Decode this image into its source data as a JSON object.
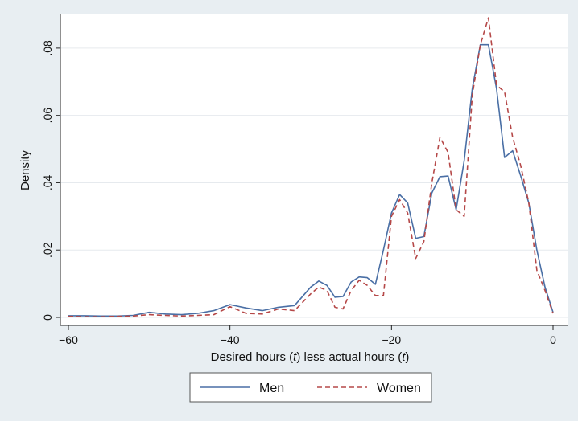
{
  "chart_data": {
    "type": "line",
    "xlabel": "Desired hours (t) less actual hours (t)",
    "ylabel": "Density",
    "xlim": [
      -60,
      0
    ],
    "ylim": [
      0,
      0.09
    ],
    "x_ticks": [
      -60,
      -40,
      -20,
      0
    ],
    "x_tick_labels": [
      "−60",
      "−40",
      "−20",
      "0"
    ],
    "y_ticks": [
      0,
      0.02,
      0.04,
      0.06,
      0.08
    ],
    "y_tick_labels": [
      "0",
      ".02",
      ".04",
      ".06",
      ".08"
    ],
    "grid": "horizontal",
    "legend": "bottom",
    "series": [
      {
        "name": "Men",
        "color": "#4a6fa5",
        "dash": "solid",
        "points": [
          [
            -60,
            0.0005
          ],
          [
            -58,
            0.0005
          ],
          [
            -56,
            0.0004
          ],
          [
            -54,
            0.0004
          ],
          [
            -52,
            0.0006
          ],
          [
            -50,
            0.0015
          ],
          [
            -48,
            0.001
          ],
          [
            -46,
            0.0008
          ],
          [
            -44,
            0.0012
          ],
          [
            -42,
            0.002
          ],
          [
            -40,
            0.0038
          ],
          [
            -38,
            0.0028
          ],
          [
            -36,
            0.002
          ],
          [
            -34,
            0.003
          ],
          [
            -32,
            0.0035
          ],
          [
            -30,
            0.009
          ],
          [
            -29,
            0.0108
          ],
          [
            -28,
            0.0095
          ],
          [
            -27,
            0.006
          ],
          [
            -26,
            0.0062
          ],
          [
            -25,
            0.0105
          ],
          [
            -24,
            0.012
          ],
          [
            -23,
            0.0118
          ],
          [
            -22,
            0.0098
          ],
          [
            -21,
            0.02
          ],
          [
            -20,
            0.031
          ],
          [
            -19,
            0.0365
          ],
          [
            -18,
            0.034
          ],
          [
            -17,
            0.0235
          ],
          [
            -16,
            0.024
          ],
          [
            -15,
            0.037
          ],
          [
            -14,
            0.0418
          ],
          [
            -13,
            0.042
          ],
          [
            -12,
            0.032
          ],
          [
            -11,
            0.0465
          ],
          [
            -10,
            0.068
          ],
          [
            -9,
            0.081
          ],
          [
            -8,
            0.081
          ],
          [
            -7,
            0.068
          ],
          [
            -6,
            0.0475
          ],
          [
            -5,
            0.0495
          ],
          [
            -4,
            0.042
          ],
          [
            -3,
            0.034
          ],
          [
            -2,
            0.02
          ],
          [
            -1,
            0.009
          ],
          [
            0,
            0.0015
          ]
        ]
      },
      {
        "name": "Women",
        "color": "#b54848",
        "dash": "dashed",
        "points": [
          [
            -60,
            0.0003
          ],
          [
            -58,
            0.0002
          ],
          [
            -56,
            0.0002
          ],
          [
            -54,
            0.0003
          ],
          [
            -52,
            0.0004
          ],
          [
            -50,
            0.0008
          ],
          [
            -48,
            0.0006
          ],
          [
            -46,
            0.0004
          ],
          [
            -44,
            0.0006
          ],
          [
            -42,
            0.0008
          ],
          [
            -40,
            0.0032
          ],
          [
            -38,
            0.0012
          ],
          [
            -36,
            0.001
          ],
          [
            -34,
            0.0025
          ],
          [
            -32,
            0.002
          ],
          [
            -30,
            0.007
          ],
          [
            -29,
            0.009
          ],
          [
            -28,
            0.008
          ],
          [
            -27,
            0.003
          ],
          [
            -26,
            0.0025
          ],
          [
            -25,
            0.008
          ],
          [
            -24,
            0.011
          ],
          [
            -23,
            0.0095
          ],
          [
            -22,
            0.0065
          ],
          [
            -21,
            0.0065
          ],
          [
            -20,
            0.03
          ],
          [
            -19,
            0.035
          ],
          [
            -18,
            0.031
          ],
          [
            -17,
            0.0175
          ],
          [
            -16,
            0.0225
          ],
          [
            -15,
            0.04
          ],
          [
            -14,
            0.0535
          ],
          [
            -13,
            0.049
          ],
          [
            -12,
            0.032
          ],
          [
            -11,
            0.03
          ],
          [
            -10,
            0.066
          ],
          [
            -9,
            0.081
          ],
          [
            -8,
            0.089
          ],
          [
            -7,
            0.069
          ],
          [
            -6,
            0.067
          ],
          [
            -5,
            0.0535
          ],
          [
            -4,
            0.045
          ],
          [
            -3,
            0.034
          ],
          [
            -2,
            0.014
          ],
          [
            -1,
            0.008
          ],
          [
            0,
            0.0012
          ]
        ]
      }
    ]
  }
}
